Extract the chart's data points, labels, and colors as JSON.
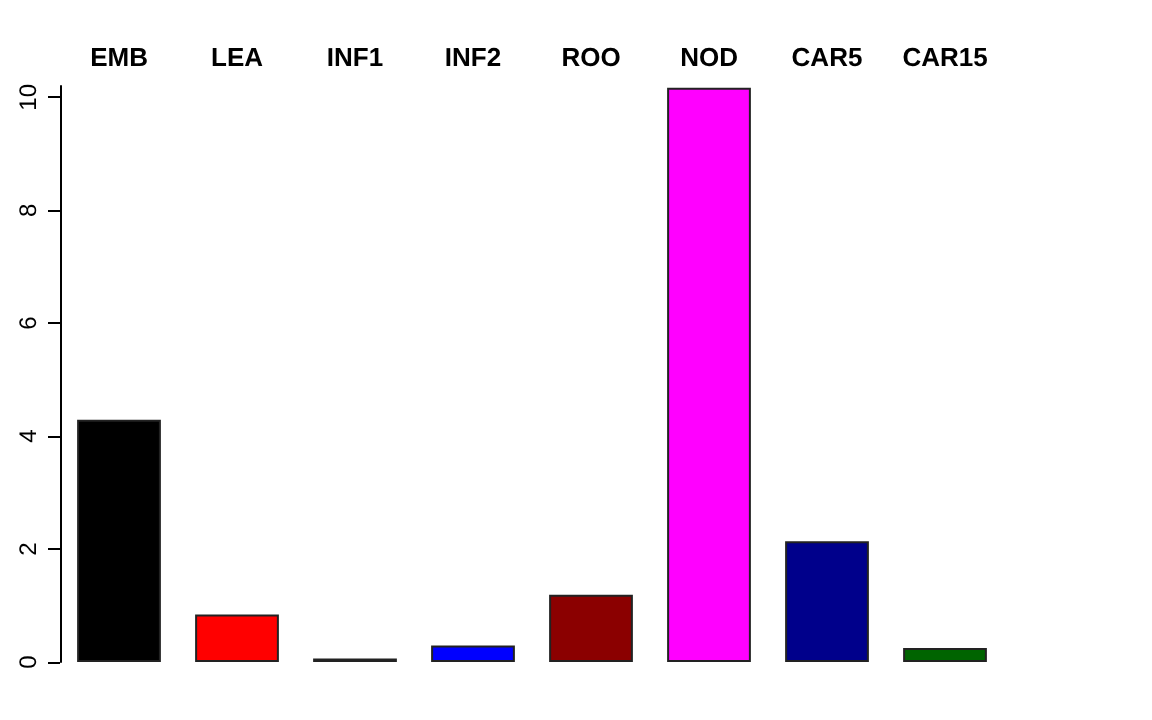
{
  "chart_data": {
    "type": "bar",
    "categories": [
      "EMB",
      "LEA",
      "INF1",
      "INF2",
      "ROO",
      "NOD",
      "CAR5",
      "CAR15"
    ],
    "values": [
      4.29,
      0.84,
      0.06,
      0.29,
      1.19,
      10.17,
      2.14,
      0.25
    ],
    "colors": [
      "#000000",
      "#ff0000",
      "#00cd00",
      "#0000ff",
      "#8b0000",
      "#ff00ff",
      "#00008b",
      "#006400"
    ],
    "ylim": [
      0,
      10.2
    ],
    "yticks": [
      0,
      2,
      4,
      6,
      8,
      10
    ],
    "grid": false
  }
}
